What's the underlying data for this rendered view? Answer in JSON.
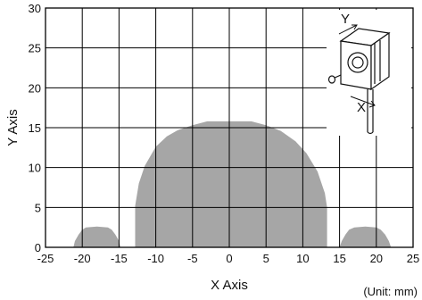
{
  "chart_data": {
    "type": "area",
    "xlabel": "X Axis",
    "ylabel": "Y Axis",
    "unit_note": "(Unit: mm)",
    "xlim": [
      -25,
      25
    ],
    "ylim": [
      0,
      30
    ],
    "xticks": [
      -25,
      -20,
      -15,
      -10,
      -5,
      0,
      5,
      10,
      15,
      20,
      25
    ],
    "yticks": [
      0,
      5,
      10,
      15,
      20,
      25,
      30
    ],
    "grid": true,
    "fill_color": "#a6a6a6",
    "inset": "sensor-orientation-diagram",
    "inset_labels": {
      "y_axis": "Y",
      "x_axis": "X"
    },
    "series": [
      {
        "values": [
          [
            -21.2,
            0
          ],
          [
            -21,
            0.8
          ],
          [
            -20.5,
            1.6
          ],
          [
            -20,
            2.2
          ],
          [
            -19.5,
            2.5
          ],
          [
            -18,
            2.6
          ],
          [
            -16.5,
            2.5
          ],
          [
            -16,
            2.2
          ],
          [
            -15.5,
            1.6
          ],
          [
            -15,
            0.8
          ],
          [
            -14.8,
            0
          ]
        ]
      },
      {
        "values": [
          [
            -12.8,
            0
          ],
          [
            -12.8,
            5.2
          ],
          [
            -12.3,
            8
          ],
          [
            -11.5,
            10.2
          ],
          [
            -10,
            12.6
          ],
          [
            -8.5,
            13.9
          ],
          [
            -7,
            14.7
          ],
          [
            -5,
            15.3
          ],
          [
            -3,
            15.8
          ],
          [
            3,
            15.8
          ],
          [
            5,
            15.3
          ],
          [
            7,
            14.6
          ],
          [
            9,
            13.3
          ],
          [
            10.5,
            11.8
          ],
          [
            12,
            9.5
          ],
          [
            13,
            6.8
          ],
          [
            13.3,
            5
          ],
          [
            13.3,
            0
          ]
        ]
      },
      {
        "values": [
          [
            15,
            0
          ],
          [
            15.3,
            0.8
          ],
          [
            15.8,
            1.6
          ],
          [
            16.3,
            2.2
          ],
          [
            17,
            2.5
          ],
          [
            18.5,
            2.6
          ],
          [
            20,
            2.5
          ],
          [
            20.6,
            2.2
          ],
          [
            21.2,
            1.6
          ],
          [
            21.7,
            0.8
          ],
          [
            22,
            0
          ]
        ]
      }
    ]
  }
}
